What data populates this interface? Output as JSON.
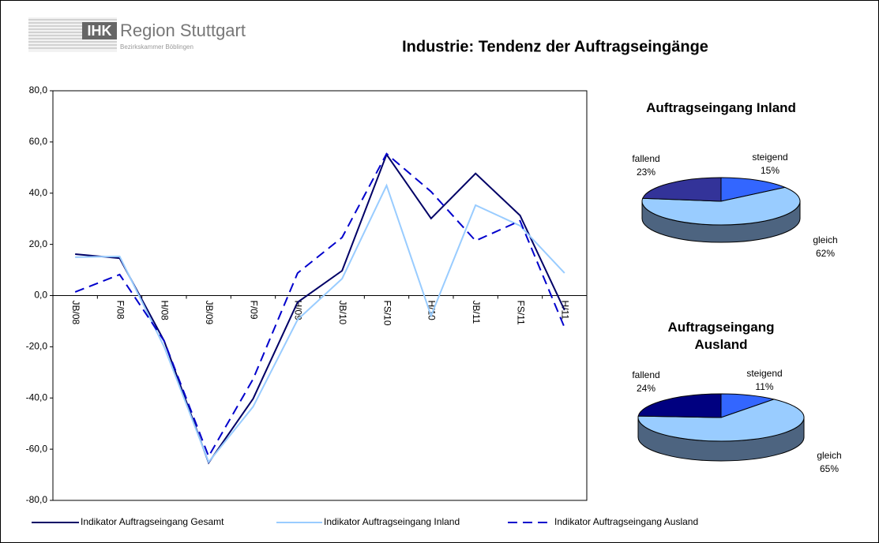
{
  "header": {
    "logo": "IHK",
    "logo_text": "Region Stuttgart",
    "logo_sub": "Bezirkskammer Böblingen",
    "title": "Industrie: Tendenz der Auftragseingänge"
  },
  "chart_data": [
    {
      "type": "line",
      "categories": [
        "JB/08",
        "F/08",
        "H/08",
        "JB/09",
        "F/09",
        "H/09",
        "JB/10",
        "FS/10",
        "H/10",
        "JB/11",
        "FS/11",
        "H/11"
      ],
      "series": [
        {
          "name": "Indikator Auftragseingang Gesamt",
          "color": "#000066",
          "dash": false,
          "values": [
            16.2,
            14.6,
            -17.7,
            -65.3,
            -40.3,
            -2.6,
            9.7,
            55.1,
            30.1,
            47.7,
            31.3,
            -5.7
          ]
        },
        {
          "name": "Indikator Auftragseingang Inland",
          "color": "#99ccff",
          "dash": false,
          "values": [
            15.0,
            15.3,
            -20.0,
            -65.0,
            -43.4,
            -9.4,
            6.6,
            43.0,
            -7.9,
            35.3,
            27.3,
            8.8
          ]
        },
        {
          "name": "Indikator Auftragseingang Ausland",
          "color": "#0000cc",
          "dash": true,
          "values": [
            1.4,
            8.2,
            -17.7,
            -62.8,
            -32.6,
            8.8,
            22.7,
            55.4,
            40.6,
            21.4,
            29.2,
            -12.5
          ]
        }
      ],
      "ylim": [
        -80,
        80
      ],
      "yticks": [
        {
          "value": -80,
          "label": "-80,0"
        },
        {
          "value": -60,
          "label": "-60,0"
        },
        {
          "value": -40,
          "label": "-40,0"
        },
        {
          "value": -20,
          "label": "-20,0"
        },
        {
          "value": 0,
          "label": "0,0"
        },
        {
          "value": 20,
          "label": "20,0"
        },
        {
          "value": 40,
          "label": "40,0"
        },
        {
          "value": 60,
          "label": "60,0"
        },
        {
          "value": 80,
          "label": "80,0"
        }
      ],
      "grid": false,
      "legend": "bottom"
    },
    {
      "type": "pie",
      "title": "Auftragseingang Inland",
      "categories": [
        "steigend",
        "gleich",
        "fallend"
      ],
      "values": [
        15,
        62,
        23
      ],
      "value_labels": [
        "15%",
        "62%",
        "23%"
      ],
      "colors": [
        "#3366ff",
        "#99ccff",
        "#333399"
      ]
    },
    {
      "type": "pie",
      "title": "Auftragseingang Ausland",
      "categories": [
        "steigend",
        "gleich",
        "fallend"
      ],
      "values": [
        11,
        65,
        24
      ],
      "value_labels": [
        "11%",
        "65%",
        "24%"
      ],
      "colors": [
        "#3366ff",
        "#99ccff",
        "#000080"
      ]
    }
  ]
}
